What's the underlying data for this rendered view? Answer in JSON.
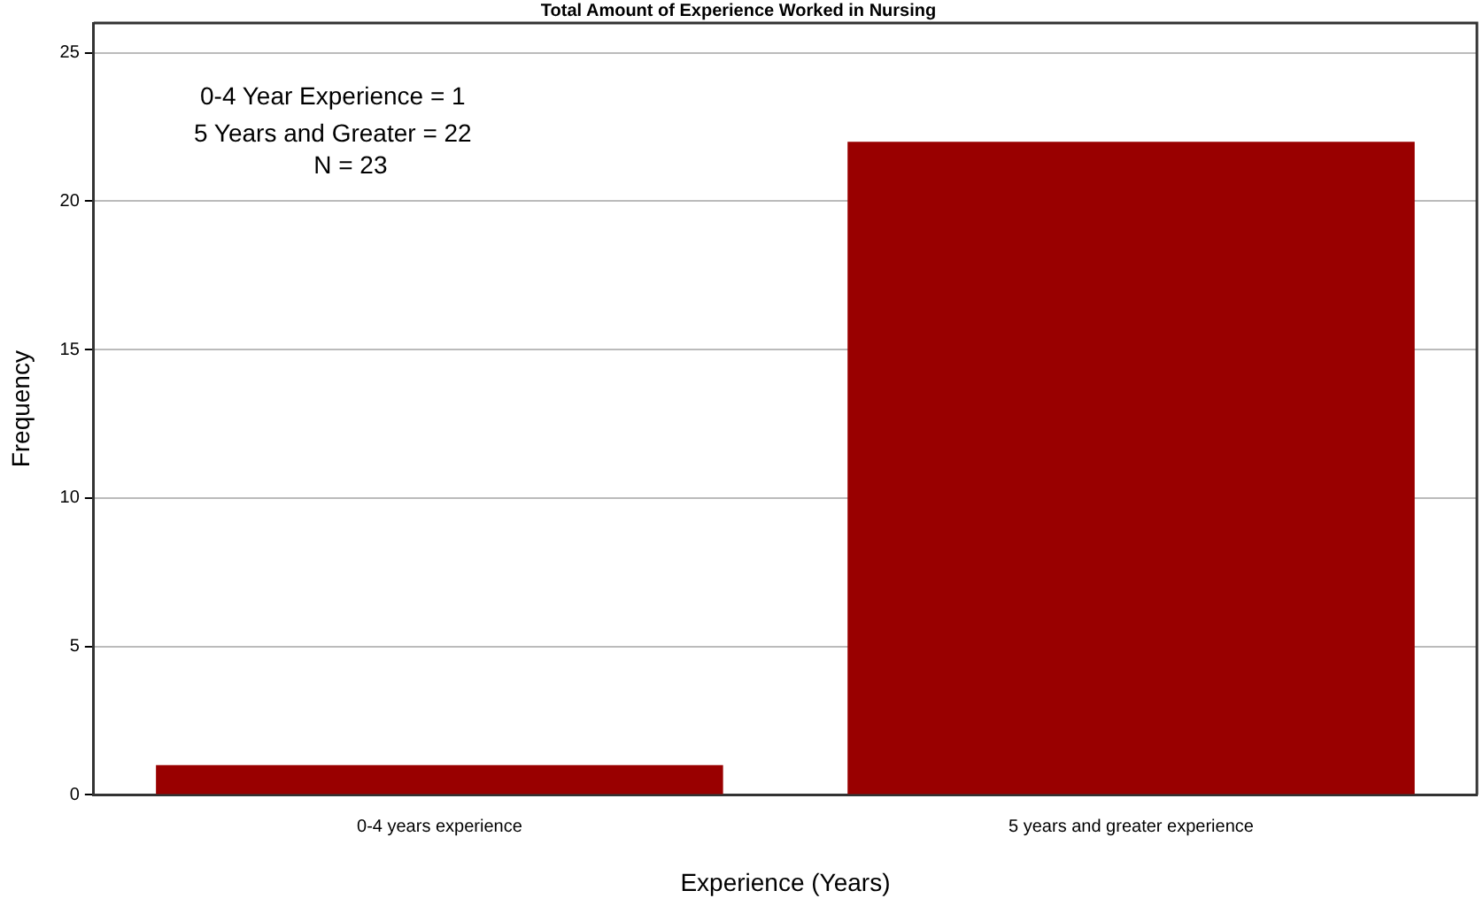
{
  "chart_data": {
    "type": "bar",
    "title": "Total Amount of Experience Worked in Nursing",
    "xlabel": "Experience (Years)",
    "ylabel": "Frequency",
    "categories": [
      "0-4 years experience",
      "5 years and greater experience"
    ],
    "values": [
      1,
      22
    ],
    "color": "#990000",
    "ylim": [
      0,
      26
    ],
    "yticks": [
      0,
      5,
      10,
      15,
      20,
      25
    ],
    "grid": "y",
    "annotations": [
      "0-4 Year Experience = 1",
      "5 Years and Greater = 22",
      "N = 23"
    ]
  }
}
